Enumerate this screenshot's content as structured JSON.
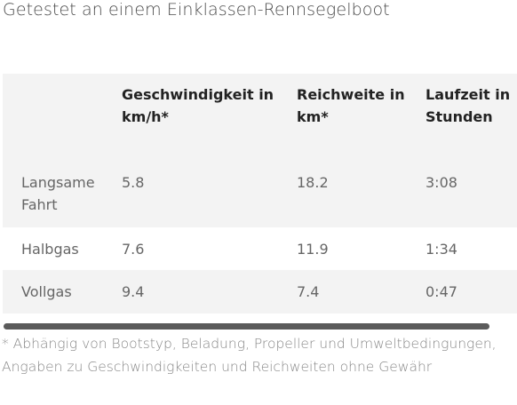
{
  "title": "Getestet an einem Einklassen-Rennsegelboot",
  "table": {
    "headers": [
      "",
      "Geschwindigkeit in km/h*",
      "Reichweite in km*",
      "Laufzeit in Stunden"
    ],
    "rows": [
      [
        "Langsame Fahrt",
        "5.8",
        "18.2",
        "3:08"
      ],
      [
        "Halbgas",
        "7.6",
        "11.9",
        "1:34"
      ],
      [
        "Vollgas",
        "9.4",
        "7.4",
        "0:47"
      ]
    ]
  },
  "footnote": "* Abhängig von Bootstyp, Beladung, Propeller und Umweltbedingungen, Angaben zu Geschwindigkeiten und Reichweiten ohne Gewähr",
  "colors": {
    "row_shade": "#f3f3f3",
    "header_text": "#222222",
    "body_text": "#666666",
    "scrollbar": "#5b5b5b"
  }
}
